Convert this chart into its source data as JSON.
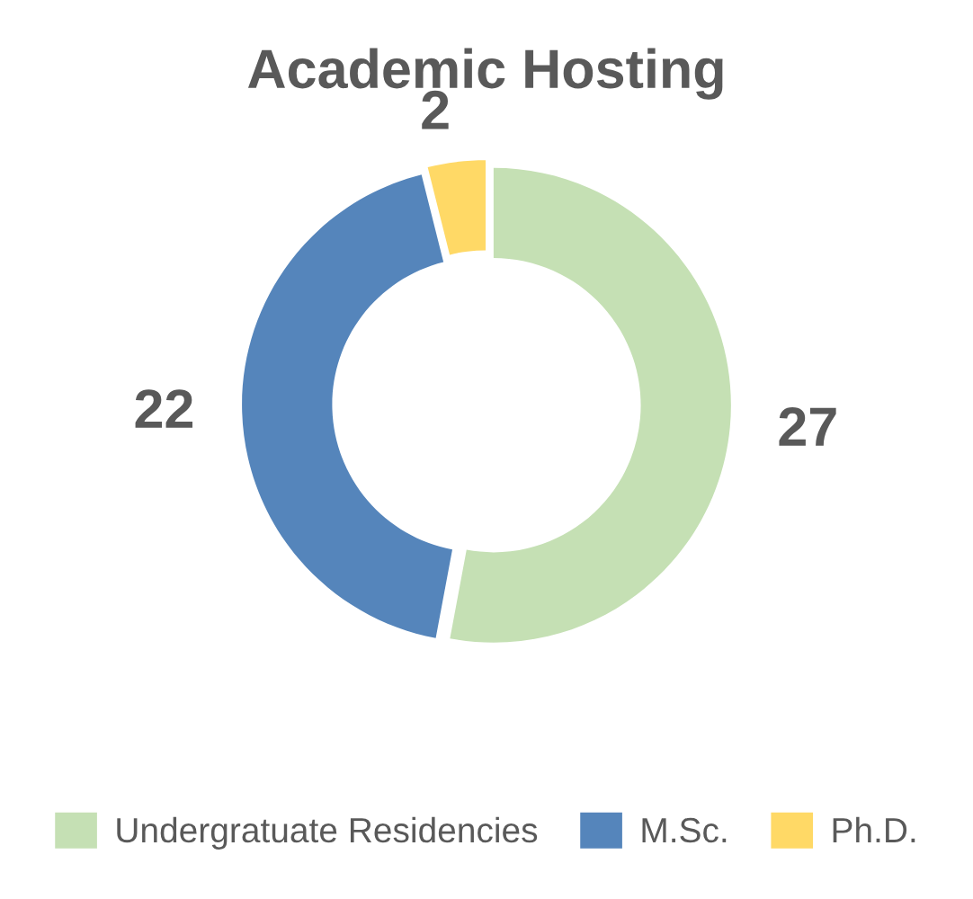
{
  "chart_data": {
    "type": "donut",
    "title": "Academic Hosting",
    "categories": [
      "Undergratuate Residencies",
      "M.Sc.",
      "Ph.D."
    ],
    "values": [
      27,
      22,
      2
    ],
    "colors": [
      "#c5e0b4",
      "#5585bb",
      "#ffd966"
    ],
    "data_labels": true,
    "legend": "bottom"
  }
}
